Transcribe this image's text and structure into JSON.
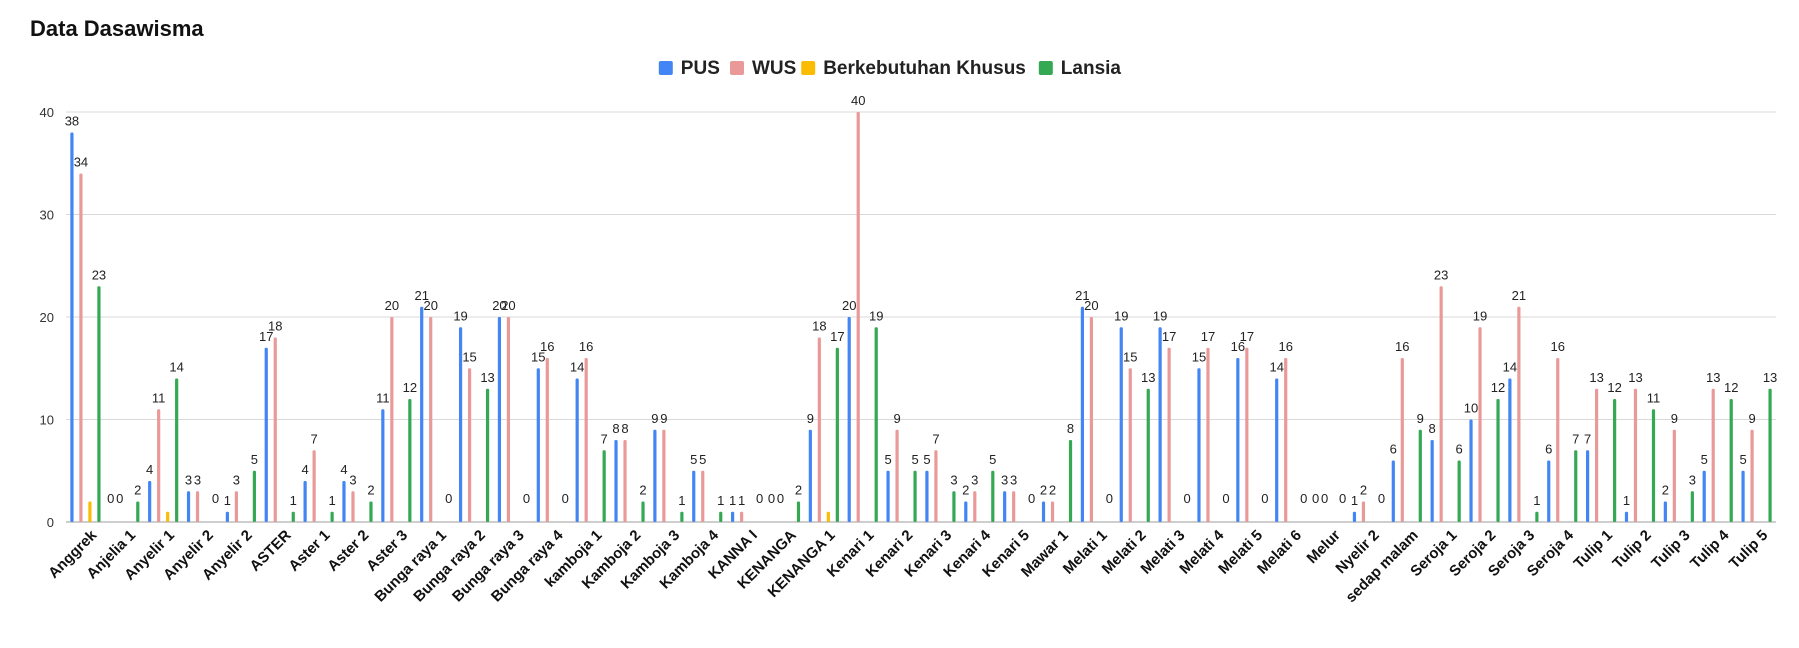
{
  "chart_data": {
    "type": "bar",
    "title": "Data Dasawisma",
    "xlabel": "",
    "ylabel": "",
    "ylim": [
      0,
      40
    ],
    "yticks": [
      0,
      10,
      20,
      30,
      40
    ],
    "grid": true,
    "legend_position": "top",
    "categories": [
      "Anggrek",
      "Anjelia 1",
      "Anyelir 1",
      "Anyelir 2",
      "Anyelir 2",
      "ASTER",
      "Aster 1",
      "Aster 2",
      "Aster 3",
      "Bunga raya 1",
      "Bunga raya 2",
      "Bunga raya 3",
      "Bunga raya 4",
      "kamboja 1",
      "Kamboja 2",
      "Kamboja 3",
      "Kamboja 4",
      "KANNA I",
      "KENANGA",
      "KENANGA 1",
      "Kenari 1",
      "Kenari 2",
      "Kenari 3",
      "Kenari 4",
      "Kenari 5",
      "Mawar 1",
      "Melati 1",
      "Melati 2",
      "Melati 3",
      "Melati 4",
      "Melati 5",
      "Melati 6",
      "Melur",
      "Nyelir 2",
      "sedap malam",
      "Seroja 1",
      "Seroja 2",
      "Seroja 3",
      "Seroja 4",
      "Tulip 1",
      "Tulip 2",
      "Tulip 3",
      "Tulip 4",
      "Tulip 5"
    ],
    "series": [
      {
        "name": "PUS",
        "color": "#4285f4",
        "values": [
          38,
          0,
          4,
          3,
          1,
          17,
          4,
          4,
          11,
          21,
          19,
          20,
          15,
          14,
          8,
          9,
          5,
          1,
          0,
          9,
          20,
          5,
          5,
          2,
          3,
          2,
          21,
          19,
          19,
          15,
          16,
          14,
          0,
          1,
          6,
          8,
          10,
          14,
          6,
          7,
          1,
          2,
          5,
          5
        ]
      },
      {
        "name": "WUS",
        "color": "#ea9999",
        "values": [
          34,
          0,
          11,
          3,
          3,
          18,
          7,
          3,
          20,
          20,
          15,
          20,
          16,
          16,
          8,
          9,
          5,
          1,
          0,
          18,
          40,
          9,
          7,
          3,
          3,
          2,
          20,
          15,
          17,
          17,
          17,
          16,
          0,
          2,
          16,
          23,
          19,
          21,
          16,
          13,
          13,
          9,
          13,
          9
        ]
      },
      {
        "name": "Berkebutuhan Khusus",
        "color": "#fbbc04",
        "values": [
          2,
          0,
          1,
          0,
          0,
          0,
          0,
          0,
          0,
          0,
          0,
          0,
          0,
          0,
          0,
          0,
          0,
          0,
          0,
          1,
          0,
          0,
          0,
          0,
          0,
          0,
          0,
          0,
          0,
          0,
          0,
          0,
          0,
          0,
          0,
          0,
          0,
          0,
          0,
          0,
          0,
          0,
          0,
          0
        ]
      },
      {
        "name": "Lansia",
        "color": "#34a853",
        "values": [
          23,
          2,
          14,
          0,
          5,
          1,
          1,
          2,
          12,
          0,
          13,
          0,
          0,
          7,
          2,
          1,
          1,
          0,
          2,
          17,
          19,
          5,
          3,
          5,
          0,
          8,
          0,
          13,
          0,
          0,
          0,
          0,
          0,
          0,
          9,
          6,
          12,
          1,
          7,
          12,
          11,
          3,
          12,
          13
        ]
      }
    ],
    "data_labels": [
      [
        "38",
        "34",
        "",
        "23"
      ],
      [
        "0",
        "0",
        "",
        "2"
      ],
      [
        "4",
        "11",
        "",
        "14"
      ],
      [
        "3",
        "3",
        "",
        "0"
      ],
      [
        "1",
        "3",
        "",
        "5"
      ],
      [
        "17",
        "18",
        "",
        "1"
      ],
      [
        "4",
        "7",
        "",
        "1"
      ],
      [
        "4",
        "3",
        "",
        "2"
      ],
      [
        "11",
        "20",
        "",
        "12"
      ],
      [
        "21",
        "20",
        "",
        "0"
      ],
      [
        "19",
        "15",
        "",
        "13"
      ],
      [
        "20",
        "20",
        "",
        "0"
      ],
      [
        "15",
        "16",
        "",
        "0"
      ],
      [
        "14",
        "16",
        "",
        "7"
      ],
      [
        "8",
        "8",
        "",
        "2"
      ],
      [
        "9",
        "9",
        "",
        "1"
      ],
      [
        "5",
        "5",
        "",
        "1"
      ],
      [
        "1",
        "1",
        "",
        "0"
      ],
      [
        "0",
        "0",
        "",
        "2"
      ],
      [
        "9",
        "18",
        "",
        "17"
      ],
      [
        "20",
        "40",
        "",
        "19"
      ],
      [
        "5",
        "9",
        "",
        "5"
      ],
      [
        "5",
        "7",
        "",
        "3"
      ],
      [
        "2",
        "3",
        "",
        "5"
      ],
      [
        "3",
        "3",
        "",
        "0"
      ],
      [
        "2",
        "2",
        "",
        "8"
      ],
      [
        "21",
        "20",
        "",
        "0"
      ],
      [
        "19",
        "15",
        "",
        "13"
      ],
      [
        "19",
        "17",
        "",
        "0"
      ],
      [
        "15",
        "17",
        "",
        "0"
      ],
      [
        "16",
        "17",
        "",
        "0"
      ],
      [
        "14",
        "16",
        "",
        "0"
      ],
      [
        "0",
        "0",
        "",
        "0"
      ],
      [
        "1",
        "2",
        "",
        "0"
      ],
      [
        "6",
        "16",
        "",
        "9"
      ],
      [
        "8",
        "23",
        "",
        "6"
      ],
      [
        "10",
        "19",
        "",
        "12"
      ],
      [
        "14",
        "21",
        "",
        "1"
      ],
      [
        "6",
        "16",
        "",
        "7"
      ],
      [
        "7",
        "13",
        "",
        "12"
      ],
      [
        "1",
        "13",
        "",
        "11"
      ],
      [
        "2",
        "9",
        "",
        "3"
      ],
      [
        "5",
        "13",
        "",
        "12"
      ],
      [
        "5",
        "9",
        "",
        "13"
      ]
    ]
  }
}
